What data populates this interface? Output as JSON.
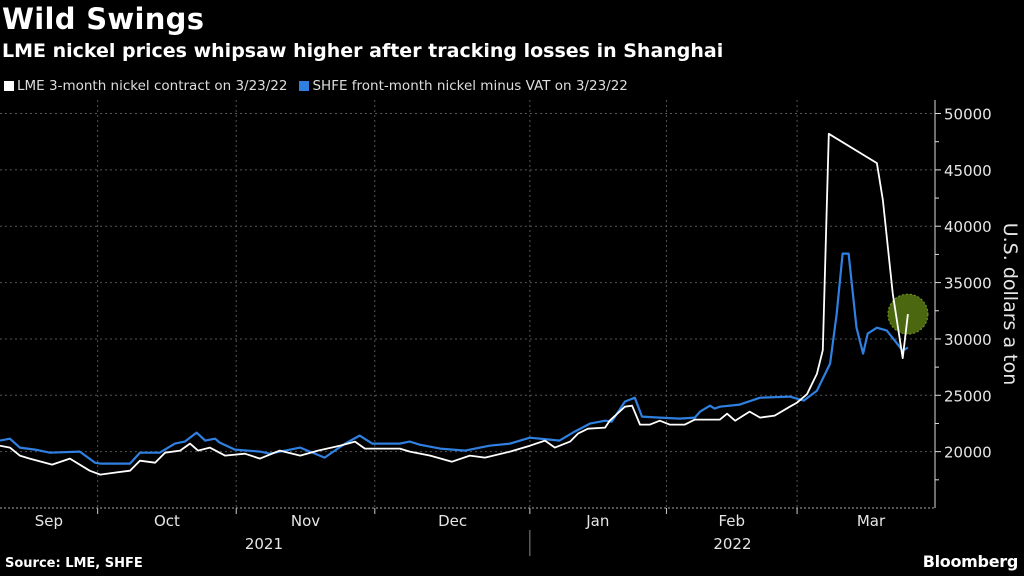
{
  "header": {
    "title": "Wild Swings",
    "subtitle": "LME nickel prices whipsaw higher after tracking losses in Shanghai"
  },
  "footer": {
    "source": "Source: LME, SHFE",
    "logo": "Bloomberg"
  },
  "colors": {
    "lme": "#ffffff",
    "shfe": "#2f80e0",
    "highlight": "#4f6e12",
    "grid": "#555555"
  },
  "chart_data": {
    "type": "line",
    "title": "Wild Swings",
    "subtitle": "LME nickel prices whipsaw higher after tracking losses in Shanghai",
    "xlabel": "",
    "ylabel": "U.S. dollars a ton",
    "x_unit": "trading days since late Aug 2021",
    "xlim": [
      0,
      141.7
    ],
    "ylim": [
      15000,
      51200
    ],
    "y_ticks": [
      20000,
      25000,
      30000,
      35000,
      40000,
      45000,
      50000
    ],
    "grid": true,
    "legend_position": "top-left",
    "month_ticks": [
      14.8,
      35.8,
      56.8,
      80.3,
      101,
      120.8
    ],
    "month_labels": [
      {
        "label": "Sep",
        "x": 7.4
      },
      {
        "label": "Oct",
        "x": 25.3
      },
      {
        "label": "Nov",
        "x": 46.3
      },
      {
        "label": "Dec",
        "x": 68.6
      },
      {
        "label": "Jan",
        "x": 90.6
      },
      {
        "label": "Feb",
        "x": 110.9
      },
      {
        "label": "Mar",
        "x": 132
      }
    ],
    "year_labels": [
      {
        "label": "2021",
        "x": 40
      },
      {
        "label": "2022",
        "x": 111
      }
    ],
    "year_divider": 80.3,
    "series": [
      {
        "name": "LME 3-month nickel contract on 3/23/22",
        "color": "#ffffff",
        "x": [
          0,
          1.5,
          3,
          4.5,
          7.9,
          10.6,
          13.6,
          15.2,
          17.4,
          19.7,
          21.2,
          23.5,
          25,
          27.3,
          28.8,
          30,
          31.8,
          34.1,
          37.1,
          39.4,
          42.4,
          45.5,
          48.2,
          51.5,
          53.8,
          55.3,
          58.3,
          60.6,
          62.1,
          65.2,
          68.5,
          71.2,
          73.5,
          77.3,
          80.3,
          82.6,
          84.1,
          86.4,
          87.6,
          89.1,
          91.7,
          92.4,
          94.7,
          95.8,
          97,
          98.5,
          100,
          101.5,
          103.8,
          105.3,
          107.6,
          109.1,
          110.2,
          111.4,
          113.6,
          115.2,
          117.4,
          119.7,
          120.8,
          122.3,
          123.8,
          124.7,
          125.6,
          132.9,
          133.8,
          135.3,
          136.8,
          137.6
        ],
        "values": [
          20530,
          20360,
          19650,
          19380,
          18850,
          19380,
          18310,
          17960,
          18140,
          18310,
          19200,
          19020,
          19910,
          20090,
          20710,
          20090,
          20360,
          19650,
          19820,
          19380,
          20090,
          19650,
          20090,
          20530,
          20890,
          20270,
          20270,
          20270,
          20000,
          19650,
          19110,
          19650,
          19470,
          20000,
          20530,
          20980,
          20360,
          20890,
          21600,
          22040,
          22130,
          22750,
          23990,
          24080,
          22400,
          22400,
          22750,
          22400,
          22400,
          22840,
          22840,
          22840,
          23370,
          22750,
          23550,
          23020,
          23200,
          23990,
          24350,
          25100,
          26900,
          29000,
          48200,
          45600,
          42300,
          34000,
          28300,
          32200
        ]
      },
      {
        "name": "SHFE front-month nickel minus VAT on 3/23/22",
        "color": "#2f80e0",
        "x": [
          0,
          1.5,
          3,
          5.3,
          7.6,
          12.1,
          14.4,
          15.2,
          19.7,
          21.2,
          24.2,
          26.5,
          28,
          29.8,
          31.1,
          32.6,
          33.3,
          35.6,
          39.4,
          40.9,
          45.5,
          49.2,
          52.3,
          54.5,
          56.4,
          60.6,
          62.1,
          63.6,
          66.7,
          70.5,
          74.2,
          77.3,
          80.3,
          83.3,
          84.8,
          87.1,
          89.4,
          91.7,
          92.7,
          94.7,
          96.2,
          97.3,
          100,
          103,
          105.3,
          106.1,
          107.6,
          108.3,
          109.1,
          112.1,
          115.2,
          119.7,
          120.8,
          121.8,
          123.8,
          125.8,
          126.8,
          127.7,
          128.6,
          129.8,
          130.8,
          131.5,
          132.9,
          134.4,
          135.6,
          136.8,
          137.6
        ],
        "values": [
          20980,
          21150,
          20360,
          20180,
          19910,
          20000,
          19020,
          18940,
          18940,
          19910,
          19910,
          20710,
          20890,
          21690,
          20980,
          21150,
          20800,
          20180,
          20000,
          19820,
          20360,
          19470,
          20710,
          21420,
          20710,
          20710,
          20890,
          20620,
          20270,
          20090,
          20530,
          20710,
          21240,
          21070,
          20980,
          21780,
          22490,
          22750,
          22660,
          24440,
          24790,
          23110,
          23020,
          22930,
          23020,
          23550,
          24080,
          23820,
          23990,
          24170,
          24790,
          24880,
          24700,
          24530,
          25410,
          27810,
          32250,
          37570,
          37570,
          31000,
          28700,
          30470,
          31000,
          30740,
          29850,
          28960,
          29230
        ]
      }
    ],
    "annotations": [
      {
        "type": "highlight-circle",
        "x": 137.6,
        "y": 32200
      }
    ]
  }
}
